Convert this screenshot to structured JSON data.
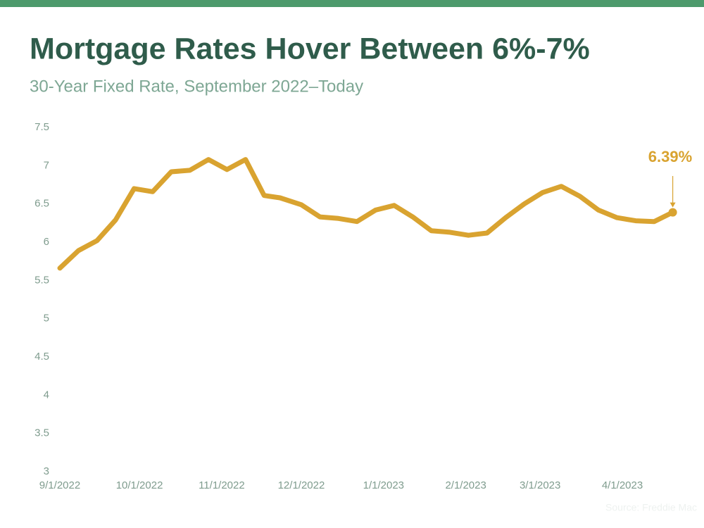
{
  "chart_data": {
    "type": "line",
    "title": "Mortgage Rates Hover Between 6%-7%",
    "subtitle": "30-Year Fixed Rate, September 2022–Today",
    "source": "Source: Freddie Mac",
    "x": [
      "9/1/2022",
      "9/8/2022",
      "9/15/2022",
      "9/22/2022",
      "9/29/2022",
      "10/6/2022",
      "10/13/2022",
      "10/20/2022",
      "10/27/2022",
      "11/3/2022",
      "11/10/2022",
      "11/17/2022",
      "11/23/2022",
      "12/1/2022",
      "12/8/2022",
      "12/15/2022",
      "12/22/2022",
      "12/29/2022",
      "1/5/2023",
      "1/12/2023",
      "1/19/2023",
      "1/26/2023",
      "2/2/2023",
      "2/9/2023",
      "2/16/2023",
      "2/23/2023",
      "3/2/2023",
      "3/9/2023",
      "3/16/2023",
      "3/23/2023",
      "3/30/2023",
      "4/6/2023",
      "4/13/2023",
      "4/20/2023"
    ],
    "series": [
      {
        "name": "30-Year Fixed Rate",
        "color": "#d9a330",
        "values": [
          5.66,
          5.89,
          6.02,
          6.29,
          6.7,
          6.66,
          6.92,
          6.94,
          7.08,
          6.95,
          7.08,
          6.61,
          6.58,
          6.49,
          6.33,
          6.31,
          6.27,
          6.42,
          6.48,
          6.33,
          6.15,
          6.13,
          6.09,
          6.12,
          6.32,
          6.5,
          6.65,
          6.73,
          6.6,
          6.42,
          6.32,
          6.28,
          6.27,
          6.39
        ],
        "value_labels": [
          null,
          null,
          null,
          null,
          null,
          null,
          null,
          null,
          null,
          null,
          null,
          null,
          null,
          null,
          null,
          null,
          null,
          null,
          null,
          null,
          null,
          null,
          null,
          null,
          null,
          null,
          null,
          null,
          null,
          null,
          null,
          null,
          null,
          "6.39%"
        ]
      }
    ],
    "xlim": [
      "9/1/2022",
      "4/27/2023"
    ],
    "xticks": [
      "9/1/2022",
      "10/1/2022",
      "11/1/2022",
      "12/1/2022",
      "1/1/2023",
      "2/1/2023",
      "3/1/2023",
      "4/1/2023"
    ],
    "ylim": [
      3,
      7.5
    ],
    "yticks": [
      3,
      3.5,
      4,
      4.5,
      5,
      5.5,
      6,
      6.5,
      7,
      7.5
    ],
    "grid": false
  }
}
